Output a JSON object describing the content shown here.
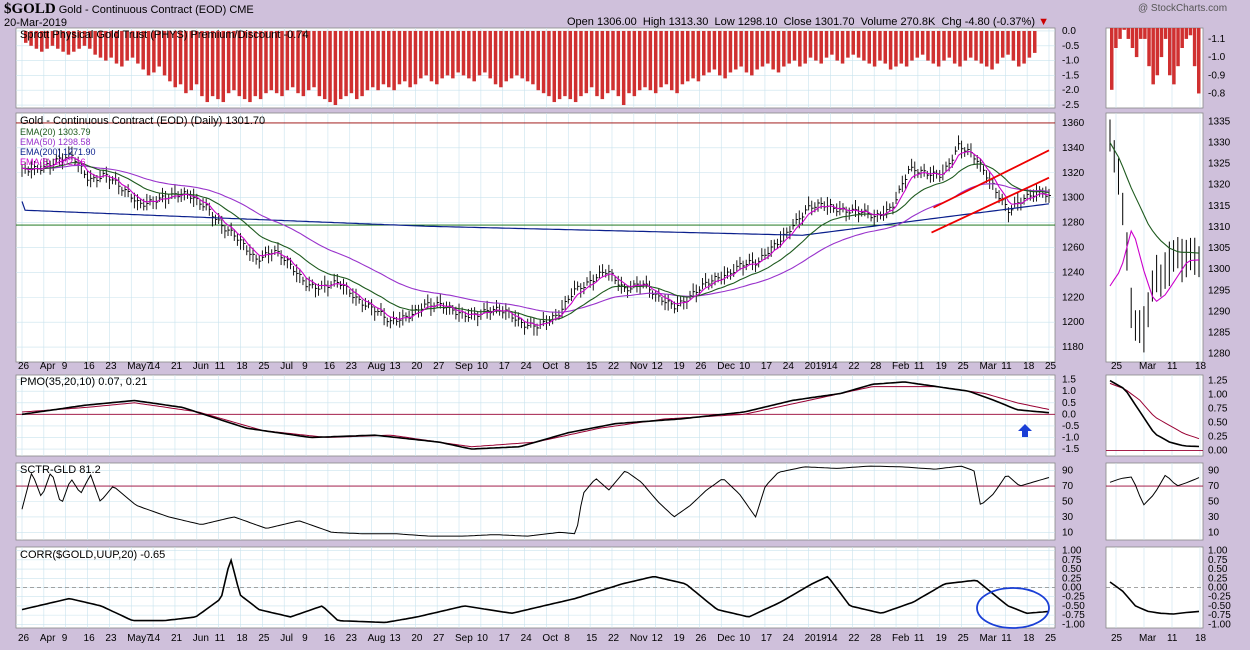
{
  "header": {
    "symbol": "$GOLD",
    "name": "Gold - Continuous Contract (EOD)",
    "exchange": "CME",
    "date": "20-Mar-2019",
    "watermark": "@ StockCharts.com",
    "open_label": "Open",
    "open": "1306.00",
    "high_label": "High",
    "high": "1313.30",
    "low_label": "Low",
    "low": "1298.10",
    "close_label": "Close",
    "close": "1301.70",
    "volume_label": "Volume",
    "volume": "270.8K",
    "chg_label": "Chg",
    "chg": "-4.80 (-0.37%)"
  },
  "colors": {
    "background": "#cfc0db",
    "panel": "#ffffff",
    "grid": "#c9e3ee",
    "down": "#cc0000",
    "premium": "#d03030",
    "ema20": "#1e5a1e",
    "ema50": "#9933cc",
    "ema200": "#0a1f8c",
    "ema5": "#cc00cc",
    "pmo_signal": "#990033",
    "channel": "#ee0000",
    "annotation": "#1a3fd6"
  },
  "chart_data": [
    {
      "type": "bar",
      "title": "Sprott Physical Gold Trust (PHYS) Premium/Discount -0.74",
      "ylim": [
        -2.6,
        0.1
      ],
      "yticks": [
        "0.0",
        "-0.5",
        "-1.0",
        "-1.5",
        "-2.0",
        "-2.5"
      ],
      "zoom_yticks": [
        "-0.8",
        "-0.9",
        "-1.0",
        "-1.1"
      ],
      "values": [
        -0.4,
        -0.5,
        -0.6,
        -0.7,
        -0.6,
        -0.5,
        -0.6,
        -0.7,
        -0.8,
        -0.7,
        -0.6,
        -0.5,
        -0.6,
        -0.8,
        -0.9,
        -1.0,
        -0.9,
        -1.1,
        -1.2,
        -1.0,
        -0.9,
        -1.1,
        -1.3,
        -1.5,
        -1.4,
        -1.2,
        -1.5,
        -1.7,
        -1.9,
        -1.8,
        -2.1,
        -2.0,
        -1.8,
        -2.2,
        -2.4,
        -2.2,
        -2.3,
        -2.4,
        -2.1,
        -2.0,
        -2.2,
        -2.3,
        -2.4,
        -2.2,
        -2.3,
        -2.1,
        -2.0,
        -2.1,
        -2.2,
        -2.0,
        -1.9,
        -2.1,
        -2.2,
        -2.0,
        -1.9,
        -2.2,
        -2.3,
        -2.4,
        -2.5,
        -2.3,
        -2.2,
        -2.1,
        -2.3,
        -2.2,
        -2.0,
        -1.9,
        -2.0,
        -1.8,
        -1.9,
        -2.0,
        -1.8,
        -1.7,
        -1.9,
        -1.8,
        -1.6,
        -1.5,
        -1.7,
        -1.8,
        -1.6,
        -1.5,
        -1.6,
        -1.4,
        -1.5,
        -1.6,
        -1.7,
        -1.5,
        -1.4,
        -1.6,
        -1.8,
        -1.9,
        -1.7,
        -1.6,
        -1.5,
        -1.6,
        -1.7,
        -1.8,
        -2.0,
        -2.1,
        -2.2,
        -2.4,
        -2.3,
        -2.2,
        -2.3,
        -2.4,
        -2.2,
        -2.1,
        -1.9,
        -2.2,
        -2.3,
        -2.1,
        -2.0,
        -2.2,
        -2.5,
        -2.1,
        -2.2,
        -2.0,
        -1.9,
        -2.0,
        -2.1,
        -1.9,
        -1.8,
        -2.0,
        -2.1,
        -1.8,
        -1.7,
        -1.6,
        -1.7,
        -1.5,
        -1.4,
        -1.3,
        -1.5,
        -1.6,
        -1.4,
        -1.3,
        -1.2,
        -1.4,
        -1.5,
        -1.3,
        -1.2,
        -1.1,
        -1.3,
        -1.4,
        -1.2,
        -1.1,
        -1.0,
        -1.2,
        -1.1,
        -0.9,
        -1.0,
        -1.1,
        -0.9,
        -0.8,
        -1.0,
        -1.1,
        -0.9,
        -0.8,
        -0.9,
        -1.0,
        -1.1,
        -1.2,
        -1.0,
        -1.1,
        -1.3,
        -1.2,
        -1.1,
        -1.2,
        -1.0,
        -0.9,
        -0.8,
        -1.0,
        -1.1,
        -1.2,
        -1.0,
        -0.9,
        -1.1,
        -1.2,
        -1.0,
        -0.9,
        -1.0,
        -1.1,
        -1.2,
        -1.3,
        -1.1,
        -0.9,
        -0.8,
        -1.0,
        -1.2,
        -1.1,
        -0.9,
        -0.74
      ],
      "zoom_values": [
        -0.82,
        -1.05,
        -1.1,
        -1.15,
        -1.1,
        -1.05,
        -1.0,
        -1.1,
        -1.1,
        -0.95,
        -0.85,
        -0.9,
        -1.0,
        -1.1,
        -0.9,
        -0.85,
        -0.95,
        -1.05,
        -1.1,
        -1.12,
        -0.95,
        -0.8
      ]
    },
    {
      "type": "line",
      "title": "Gold - Continuous Contract (EOD) (Daily) 1301.70",
      "ylim": [
        1168,
        1368
      ],
      "yticks": [
        "1360",
        "1340",
        "1320",
        "1300",
        "1280",
        "1260",
        "1240",
        "1220",
        "1200",
        "1180"
      ],
      "zoom_ylim": [
        1278,
        1337
      ],
      "zoom_yticks": [
        "1335",
        "1330",
        "1325",
        "1320",
        "1315",
        "1310",
        "1305",
        "1300",
        "1295",
        "1290",
        "1285",
        "1280"
      ],
      "hlines": [
        1360,
        1278
      ],
      "series": [
        {
          "name": "EMA(20) 1303.79"
        },
        {
          "name": "EMA(50) 1298.58"
        },
        {
          "name": "EMA(200) 1271.90"
        },
        {
          "name": "EMA(5) 1302.16"
        }
      ],
      "price_anchors": [
        [
          0,
          1320
        ],
        [
          10,
          1330
        ],
        [
          15,
          1332
        ],
        [
          20,
          1315
        ],
        [
          25,
          1320
        ],
        [
          30,
          1305
        ],
        [
          35,
          1295
        ],
        [
          40,
          1300
        ],
        [
          45,
          1300
        ],
        [
          50,
          1302
        ],
        [
          55,
          1295
        ],
        [
          60,
          1275
        ],
        [
          65,
          1265
        ],
        [
          70,
          1252
        ],
        [
          75,
          1257
        ],
        [
          80,
          1245
        ],
        [
          85,
          1232
        ],
        [
          90,
          1228
        ],
        [
          95,
          1230
        ],
        [
          100,
          1220
        ],
        [
          105,
          1212
        ],
        [
          110,
          1198
        ],
        [
          115,
          1205
        ],
        [
          120,
          1215
        ],
        [
          125,
          1212
        ],
        [
          130,
          1208
        ],
        [
          135,
          1207
        ],
        [
          140,
          1208
        ],
        [
          145,
          1208
        ],
        [
          150,
          1200
        ],
        [
          155,
          1196
        ],
        [
          160,
          1204
        ],
        [
          165,
          1228
        ],
        [
          170,
          1232
        ],
        [
          175,
          1240
        ],
        [
          180,
          1228
        ],
        [
          185,
          1232
        ],
        [
          190,
          1218
        ],
        [
          195,
          1214
        ],
        [
          200,
          1222
        ],
        [
          205,
          1230
        ],
        [
          210,
          1238
        ],
        [
          215,
          1248
        ],
        [
          220,
          1246
        ],
        [
          225,
          1262
        ],
        [
          230,
          1278
        ],
        [
          235,
          1290
        ],
        [
          240,
          1294
        ],
        [
          245,
          1292
        ],
        [
          250,
          1288
        ],
        [
          255,
          1283
        ],
        [
          260,
          1294
        ],
        [
          265,
          1322
        ],
        [
          270,
          1318
        ],
        [
          275,
          1320
        ],
        [
          280,
          1342
        ],
        [
          285,
          1330
        ],
        [
          290,
          1312
        ],
        [
          295,
          1290
        ],
        [
          300,
          1298
        ],
        [
          305,
          1306
        ],
        [
          307,
          1301.7
        ]
      ],
      "zoom_price": [
        1332,
        1327,
        1318,
        1305,
        1290,
        1285,
        1284,
        1292,
        1298,
        1296,
        1300,
        1302,
        1305,
        1302,
        1303,
        1306,
        1301.7
      ],
      "zoom_ema20": [
        1330,
        1326,
        1320,
        1315,
        1310,
        1307,
        1305,
        1304,
        1304,
        1303.8
      ],
      "zoom_ema5": [
        1296,
        1300,
        1310,
        1300,
        1292,
        1294,
        1298,
        1302,
        1302.2
      ]
    },
    {
      "type": "line",
      "title": "PMO(35,20,10) 0.07, 0.21",
      "ylim": [
        -1.8,
        1.7
      ],
      "yticks": [
        "1.5",
        "1.0",
        "0.5",
        "0.0",
        "-0.5",
        "-1.0",
        "-1.5"
      ],
      "zoom_ylim": [
        -0.1,
        1.35
      ],
      "zoom_yticks": [
        "1.25",
        "1.00",
        "0.75",
        "0.50",
        "0.25",
        "0.00"
      ],
      "hlines": [
        0
      ],
      "series": [
        {
          "name": "PMO",
          "values_anchors": [
            [
              0,
              0.0
            ],
            [
              20,
              0.4
            ],
            [
              35,
              0.6
            ],
            [
              50,
              0.3
            ],
            [
              70,
              -0.6
            ],
            [
              90,
              -1.0
            ],
            [
              110,
              -0.9
            ],
            [
              130,
              -1.2
            ],
            [
              140,
              -1.5
            ],
            [
              155,
              -1.4
            ],
            [
              170,
              -0.8
            ],
            [
              185,
              -0.4
            ],
            [
              205,
              -0.2
            ],
            [
              225,
              0.1
            ],
            [
              240,
              0.6
            ],
            [
              255,
              0.9
            ],
            [
              265,
              1.3
            ],
            [
              275,
              1.4
            ],
            [
              285,
              1.2
            ],
            [
              295,
              1.0
            ],
            [
              303,
              0.6
            ],
            [
              310,
              0.2
            ],
            [
              320,
              0.07
            ]
          ]
        },
        {
          "name": "Signal",
          "values_anchors": [
            [
              0,
              0.1
            ],
            [
              20,
              0.3
            ],
            [
              35,
              0.5
            ],
            [
              55,
              0.1
            ],
            [
              75,
              -0.7
            ],
            [
              95,
              -1.0
            ],
            [
              115,
              -0.9
            ],
            [
              140,
              -1.4
            ],
            [
              160,
              -1.2
            ],
            [
              180,
              -0.6
            ],
            [
              200,
              -0.2
            ],
            [
              225,
              0.0
            ],
            [
              245,
              0.6
            ],
            [
              265,
              1.2
            ],
            [
              285,
              1.2
            ],
            [
              300,
              0.9
            ],
            [
              310,
              0.5
            ],
            [
              320,
              0.21
            ]
          ]
        }
      ],
      "zoom_pmo": [
        1.25,
        1.1,
        0.7,
        0.3,
        0.15,
        0.08,
        0.07
      ],
      "zoom_signal": [
        1.2,
        1.1,
        0.9,
        0.6,
        0.45,
        0.3,
        0.21
      ]
    },
    {
      "type": "line",
      "title": "SCTR-GLD 81.2",
      "ylim": [
        0,
        100
      ],
      "yticks": [
        "90",
        "70",
        "50",
        "30",
        "10"
      ],
      "hlines": [
        70
      ],
      "values_anchors": [
        [
          0,
          40
        ],
        [
          3,
          88
        ],
        [
          6,
          55
        ],
        [
          9,
          90
        ],
        [
          12,
          45
        ],
        [
          15,
          80
        ],
        [
          18,
          60
        ],
        [
          21,
          85
        ],
        [
          24,
          50
        ],
        [
          28,
          70
        ],
        [
          35,
          45
        ],
        [
          45,
          30
        ],
        [
          55,
          20
        ],
        [
          65,
          30
        ],
        [
          75,
          15
        ],
        [
          85,
          25
        ],
        [
          95,
          10
        ],
        [
          105,
          8
        ],
        [
          115,
          8
        ],
        [
          125,
          5
        ],
        [
          135,
          5
        ],
        [
          145,
          7
        ],
        [
          155,
          5
        ],
        [
          165,
          10
        ],
        [
          170,
          8
        ],
        [
          172,
          60
        ],
        [
          176,
          80
        ],
        [
          180,
          65
        ],
        [
          185,
          90
        ],
        [
          190,
          75
        ],
        [
          195,
          50
        ],
        [
          200,
          30
        ],
        [
          205,
          45
        ],
        [
          210,
          65
        ],
        [
          215,
          80
        ],
        [
          220,
          60
        ],
        [
          225,
          30
        ],
        [
          228,
          70
        ],
        [
          232,
          88
        ],
        [
          240,
          95
        ],
        [
          250,
          93
        ],
        [
          260,
          96
        ],
        [
          270,
          95
        ],
        [
          280,
          92
        ],
        [
          288,
          96
        ],
        [
          292,
          90
        ],
        [
          294,
          45
        ],
        [
          298,
          60
        ],
        [
          302,
          85
        ],
        [
          306,
          70
        ],
        [
          310,
          75
        ],
        [
          315,
          81.2
        ]
      ],
      "zoom_values": [
        75,
        80,
        82,
        45,
        60,
        85,
        70,
        75,
        81
      ]
    },
    {
      "type": "line",
      "title": "CORR($GOLD,UUP,20) -0.65",
      "ylim": [
        -1.1,
        1.1
      ],
      "yticks": [
        "1.00",
        "0.75",
        "0.50",
        "0.25",
        "0.00",
        "-0.25",
        "-0.50",
        "-0.75",
        "-1.00"
      ],
      "hlines": [
        0
      ],
      "values_anchors": [
        [
          0,
          -0.6
        ],
        [
          15,
          -0.3
        ],
        [
          25,
          -0.5
        ],
        [
          35,
          -0.9
        ],
        [
          45,
          -0.9
        ],
        [
          55,
          -0.8
        ],
        [
          63,
          -0.3
        ],
        [
          66,
          0.8
        ],
        [
          69,
          -0.2
        ],
        [
          75,
          -0.6
        ],
        [
          85,
          -0.8
        ],
        [
          95,
          -0.5
        ],
        [
          100,
          -0.9
        ],
        [
          115,
          -0.95
        ],
        [
          125,
          -0.8
        ],
        [
          140,
          -0.5
        ],
        [
          155,
          -0.7
        ],
        [
          165,
          -0.5
        ],
        [
          175,
          -0.3
        ],
        [
          190,
          0.1
        ],
        [
          200,
          0.3
        ],
        [
          210,
          0.1
        ],
        [
          220,
          -0.6
        ],
        [
          230,
          -0.8
        ],
        [
          240,
          -0.4
        ],
        [
          250,
          0.1
        ],
        [
          255,
          0.3
        ],
        [
          262,
          -0.5
        ],
        [
          272,
          -0.7
        ],
        [
          282,
          -0.4
        ],
        [
          292,
          0.1
        ],
        [
          302,
          0.2
        ],
        [
          312,
          -0.5
        ],
        [
          318,
          -0.7
        ],
        [
          325,
          -0.65
        ]
      ],
      "zoom_values": [
        0.15,
        -0.1,
        -0.5,
        -0.65,
        -0.7,
        -0.72,
        -0.68,
        -0.65
      ]
    }
  ],
  "x_axis_labels": [
    "26",
    "Apr",
    "9",
    "16",
    "23",
    "May7",
    "14",
    "21",
    "Jun",
    "11",
    "18",
    "25",
    "Jul",
    "9",
    "16",
    "23",
    "Aug",
    "13",
    "20",
    "27",
    "Sep",
    "10",
    "17",
    "24",
    "Oct",
    "8",
    "15",
    "22",
    "Nov",
    "12",
    "19",
    "26",
    "Dec",
    "10",
    "17",
    "24",
    "2019",
    "14",
    "22",
    "28",
    "Feb",
    "11",
    "19",
    "25",
    "Mar",
    "11",
    "18",
    "25"
  ],
  "zoom_x_labels": [
    "25",
    "Mar",
    "11",
    "18"
  ],
  "annotations": {
    "up_arrow": "pmo-turning-up",
    "circle": "corr-low"
  }
}
